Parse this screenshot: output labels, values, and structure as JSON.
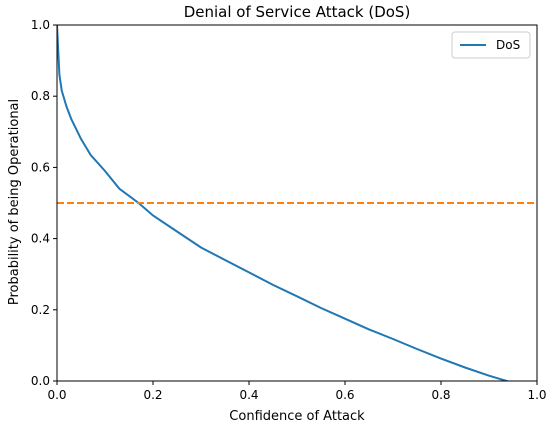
{
  "chart_data": {
    "type": "line",
    "title": "Denial of Service Attack (DoS)",
    "xlabel": "Confidence of Attack",
    "ylabel": "Probability of being Operational",
    "xlim": [
      0.0,
      1.0
    ],
    "ylim": [
      0.0,
      1.0
    ],
    "xticks": [
      "0.0",
      "0.2",
      "0.4",
      "0.6",
      "0.8",
      "1.0"
    ],
    "yticks": [
      "0.0",
      "0.2",
      "0.4",
      "0.6",
      "0.8",
      "1.0"
    ],
    "grid": false,
    "legend_position": "top-right",
    "series": [
      {
        "name": "DoS",
        "color": "#1f77b4",
        "style": "solid",
        "x": [
          0.0,
          0.005,
          0.01,
          0.02,
          0.03,
          0.05,
          0.07,
          0.1,
          0.13,
          0.17,
          0.2,
          0.25,
          0.3,
          0.35,
          0.4,
          0.45,
          0.5,
          0.55,
          0.6,
          0.65,
          0.7,
          0.75,
          0.8,
          0.85,
          0.9,
          0.95,
          0.98
        ],
        "y": [
          1.0,
          0.86,
          0.815,
          0.77,
          0.735,
          0.68,
          0.635,
          0.59,
          0.54,
          0.5,
          0.465,
          0.42,
          0.375,
          0.34,
          0.305,
          0.27,
          0.238,
          0.205,
          0.175,
          0.145,
          0.118,
          0.09,
          0.063,
          0.038,
          0.015,
          -0.005,
          -0.02
        ]
      },
      {
        "name": "",
        "color": "#ff7f0e",
        "style": "dashed",
        "x": [
          0.0,
          1.0
        ],
        "y": [
          0.5,
          0.5
        ]
      }
    ]
  }
}
